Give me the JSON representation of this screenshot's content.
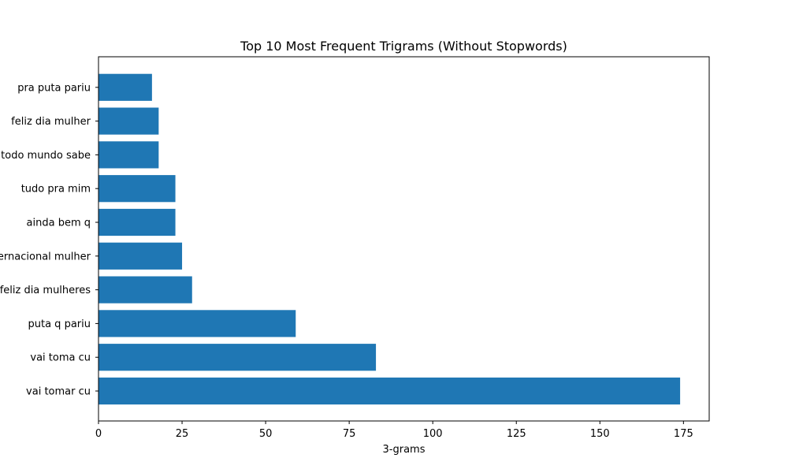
{
  "chart_data": {
    "type": "bar",
    "orientation": "horizontal",
    "title": "Top 10 Most Frequent Trigrams (Without Stopwords)",
    "xlabel": "3-grams",
    "ylabel": "",
    "categories": [
      "vai tomar cu",
      "vai toma cu",
      "puta q pariu",
      "feliz dia mulheres",
      "internacional mulher",
      "ainda bem q",
      "tudo pra mim",
      "todo mundo sabe",
      "feliz dia mulher",
      "pra puta pariu"
    ],
    "values": [
      174,
      83,
      59,
      28,
      25,
      23,
      23,
      18,
      18,
      16
    ],
    "xlim": [
      0,
      182.7
    ],
    "xticks": [
      0,
      25,
      50,
      75,
      100,
      125,
      150,
      175
    ],
    "grid": false,
    "legend": "none",
    "bar_color": "#1f77b4"
  }
}
